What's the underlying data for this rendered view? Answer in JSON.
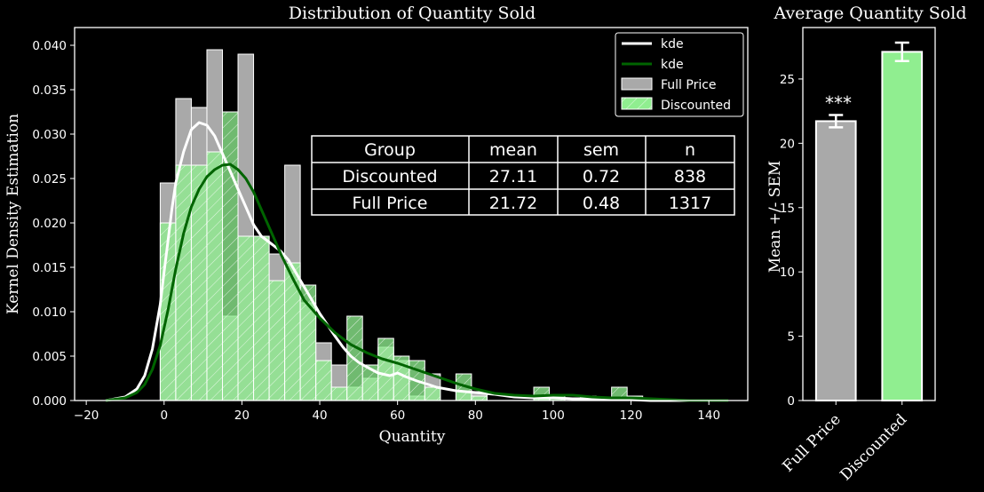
{
  "colors": {
    "background": "#000000",
    "full_price_bar": "#a9a9a9",
    "discounted_bar": "#90ee90",
    "kde_full": "#ffffff",
    "kde_discounted": "#006400",
    "hatch": "#ffffff"
  },
  "chart_data": [
    {
      "type": "histogram",
      "title": "Distribution of Quantity Sold",
      "xlabel": "Quantity",
      "ylabel": "Kernel Density Estimation",
      "xlim": [
        -23,
        150
      ],
      "ylim": [
        0,
        0.042
      ],
      "xticks": [
        "−20",
        "0",
        "20",
        "40",
        "60",
        "80",
        "100",
        "120",
        "140"
      ],
      "xtick_values": [
        -20,
        0,
        20,
        40,
        60,
        80,
        100,
        120,
        140
      ],
      "yticks": [
        "0.000",
        "0.005",
        "0.010",
        "0.015",
        "0.020",
        "0.025",
        "0.030",
        "0.035",
        "0.040"
      ],
      "ytick_values": [
        0,
        0.005,
        0.01,
        0.015,
        0.02,
        0.025,
        0.03,
        0.035,
        0.04
      ],
      "legend_position": "upper right",
      "legend": [
        {
          "label": "kde",
          "kind": "line",
          "color": "#ffffff"
        },
        {
          "label": "kde",
          "kind": "line",
          "color": "#006400"
        },
        {
          "label": "Full Price",
          "kind": "patch",
          "color": "#a9a9a9"
        },
        {
          "label": "Discounted",
          "kind": "hatch",
          "color": "#90ee90"
        }
      ],
      "series": [
        {
          "name": "Full Price",
          "bin_width": 4,
          "x": [
            1,
            5,
            9,
            13,
            17,
            21,
            25,
            29,
            33,
            37,
            41,
            45,
            49,
            53,
            57,
            61,
            65,
            69,
            73,
            77,
            81,
            85,
            89,
            93,
            97,
            101,
            105,
            109,
            113,
            117,
            121
          ],
          "values": [
            0.0245,
            0.034,
            0.033,
            0.0395,
            0.0095,
            0.039,
            0.0185,
            0.0165,
            0.0265,
            0.011,
            0.0065,
            0.004,
            0.0015,
            0.0025,
            0.006,
            0.0045,
            0.0005,
            0.003,
            0.0,
            0.001,
            0.001,
            0.0,
            0.0,
            0.0,
            0.0005,
            0.0,
            0.0,
            0.0005,
            0.0,
            0.0,
            0.0
          ]
        },
        {
          "name": "Discounted",
          "bin_width": 4,
          "x": [
            1,
            5,
            9,
            13,
            17,
            21,
            25,
            29,
            33,
            37,
            41,
            45,
            49,
            53,
            57,
            61,
            65,
            69,
            73,
            77,
            81,
            85,
            89,
            93,
            97,
            101,
            105,
            109,
            113,
            117,
            121
          ],
          "values": [
            0.02,
            0.0265,
            0.0265,
            0.028,
            0.0325,
            0.0185,
            0.0185,
            0.0135,
            0.0155,
            0.013,
            0.0045,
            0.0015,
            0.0095,
            0.004,
            0.007,
            0.005,
            0.0045,
            0.0015,
            0.0,
            0.003,
            0.0005,
            0.0,
            0.0,
            0.0,
            0.0015,
            0.0005,
            0.0,
            0.0,
            0.0,
            0.0015,
            0.0005
          ]
        }
      ],
      "kde": [
        {
          "name": "kde",
          "group": "Full Price",
          "x": [
            -15,
            -10,
            -7,
            -5,
            -3,
            -1,
            0,
            1,
            2,
            3,
            5,
            7,
            9,
            11,
            13,
            15,
            17,
            19,
            21,
            23,
            25,
            28,
            30,
            32,
            34,
            36,
            38,
            40,
            42,
            44,
            46,
            48,
            50,
            52,
            55,
            58,
            60,
            62,
            65,
            68,
            70,
            75,
            80,
            85,
            90,
            95,
            100,
            105,
            110,
            115,
            120,
            125,
            130,
            135,
            140
          ],
          "values": [
            0.0,
            0.0004,
            0.0013,
            0.0028,
            0.0058,
            0.0108,
            0.0145,
            0.018,
            0.0215,
            0.0245,
            0.028,
            0.0305,
            0.0313,
            0.031,
            0.0298,
            0.0278,
            0.0258,
            0.0238,
            0.0218,
            0.0198,
            0.0185,
            0.0175,
            0.0168,
            0.0158,
            0.0143,
            0.0128,
            0.0113,
            0.0098,
            0.0085,
            0.0072,
            0.006,
            0.005,
            0.0043,
            0.0038,
            0.0031,
            0.0028,
            0.0031,
            0.0027,
            0.0022,
            0.0018,
            0.0015,
            0.0011,
            0.0009,
            0.0007,
            0.0004,
            0.0003,
            0.0003,
            0.0002,
            0.0002,
            0.0001,
            0.0001,
            0.0,
            0.0,
            0.0,
            0.0
          ]
        },
        {
          "name": "kde",
          "group": "Discounted",
          "x": [
            -15,
            -10,
            -7,
            -5,
            -3,
            -1,
            1,
            3,
            5,
            7,
            9,
            11,
            13,
            15,
            17,
            19,
            21,
            23,
            25,
            28,
            30,
            33,
            36,
            40,
            44,
            48,
            52,
            56,
            60,
            64,
            68,
            72,
            76,
            80,
            85,
            90,
            95,
            100,
            105,
            110,
            115,
            120,
            125,
            130,
            135,
            140,
            145
          ],
          "values": [
            0.0,
            0.0003,
            0.0009,
            0.0018,
            0.0035,
            0.0062,
            0.0102,
            0.0148,
            0.0188,
            0.0218,
            0.0238,
            0.0252,
            0.026,
            0.0265,
            0.0266,
            0.026,
            0.025,
            0.0235,
            0.0215,
            0.0185,
            0.0165,
            0.0138,
            0.0113,
            0.0093,
            0.0076,
            0.0063,
            0.0054,
            0.0047,
            0.0042,
            0.0036,
            0.003,
            0.0024,
            0.0018,
            0.0013,
            0.0008,
            0.0006,
            0.0005,
            0.0006,
            0.0006,
            0.0004,
            0.0003,
            0.0003,
            0.0002,
            0.0001,
            0.0,
            0.0,
            0.0
          ]
        }
      ],
      "summary_table": {
        "columns": [
          "Group",
          "mean",
          "sem",
          "n"
        ],
        "rows": [
          [
            "Discounted",
            "27.11",
            "0.72",
            "838"
          ],
          [
            "Full Price",
            "21.72",
            "0.48",
            "1317"
          ]
        ]
      }
    },
    {
      "type": "bar",
      "title": "Average Quantity Sold",
      "xlabel": "",
      "ylabel": "Mean +/- SEM",
      "categories": [
        "Full Price",
        "Discounted"
      ],
      "values": [
        21.72,
        27.11
      ],
      "errors": [
        0.48,
        0.72
      ],
      "colors": [
        "#a9a9a9",
        "#90ee90"
      ],
      "ylim": [
        0,
        29
      ],
      "yticks": [
        "0",
        "5",
        "10",
        "15",
        "20",
        "25"
      ],
      "ytick_values": [
        0,
        5,
        10,
        15,
        20,
        25
      ],
      "annotation": "***"
    }
  ]
}
